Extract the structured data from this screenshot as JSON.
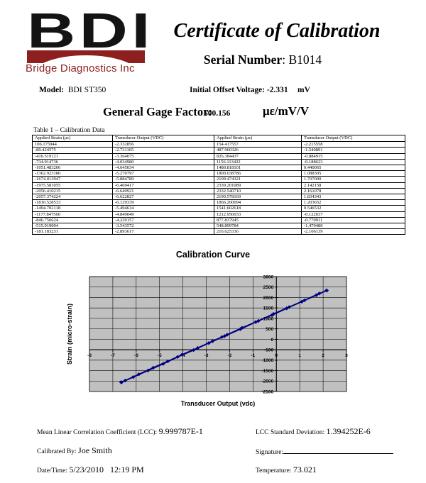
{
  "header": {
    "logo_text": "BDI",
    "logo_subtext": "Bridge Diagnostics Inc",
    "brand_color": "#8e1f1f",
    "title": "Certificate of Calibration",
    "serial_label": "Serial Number",
    "serial_value": ": B1014"
  },
  "info": {
    "model_label": "Model:",
    "model_value": "  BDI ST350",
    "offset_label": "Initial Offset Voltage: -2.331",
    "offset_unit": "mV",
    "gage_label": "General Gage Factor:",
    "gage_value": "500.156",
    "gage_unit": "με/mV/V"
  },
  "table": {
    "caption": "Table 1 – Calibration Data",
    "headers": [
      "Applied Strain (με)",
      "Transducer Output (VDC)",
      "Applied Strain (με)",
      "Transducer Output (VDC)"
    ],
    "rows": [
      [
        "106.175944",
        "-2.332856",
        "154.417557",
        "-2.215558"
      ],
      [
        "-89.424575",
        "-2.731165",
        "487.960326",
        "-1.540891"
      ],
      [
        "-416.519121",
        "-3.364075",
        "826.384437",
        "-0.884915"
      ],
      [
        "-734.914736",
        "-4.034980",
        "1156.113422",
        "-0.188623"
      ],
      [
        "-1051.483206",
        "-4.645034",
        "1480.818101",
        "0.440065"
      ],
      [
        "-1362.923180",
        "-5.270797",
        "1800.038786",
        "1.088305"
      ],
      [
        "-1674.013947",
        "-5.884789",
        "2109.474321",
        "1.707000"
      ],
      [
        "-1975.581055",
        "-6.469417",
        "2339.201089",
        "2.142158"
      ],
      [
        "-2056.410215",
        "-6.649921",
        "2332.540710",
        "2.161078"
      ],
      [
        "-2057.374224",
        "-6.622827",
        "2190.578169",
        "1.834343"
      ],
      [
        "-1810.528533",
        "-6.129339",
        "1866.200094",
        "1.203652"
      ],
      [
        "-1494.702118",
        "-5.494634",
        "1541.602618",
        "0.546532"
      ],
      [
        "-1177.847560",
        "-4.849049",
        "1212.950033",
        "-0.122637"
      ],
      [
        "-846.756624",
        "-4.229157",
        "877.837945",
        "-0.770911"
      ],
      [
        "-515.919004",
        "-3.543572",
        "548.899784",
        "-1.470480"
      ],
      [
        "-181.183231",
        "-2.893617",
        "216.625336",
        "-2.106139"
      ]
    ]
  },
  "chart_data": {
    "type": "scatter",
    "title": "Calibration Curve",
    "xlabel": "Transducer Output (vdc)",
    "ylabel": "Strain (micro-strain)",
    "xlim": [
      -8,
      3
    ],
    "ylim": [
      -2500,
      3000
    ],
    "x_ticks": [
      -8,
      -7,
      -6,
      -5,
      -4,
      -3,
      -2,
      -1,
      0,
      1,
      2,
      3
    ],
    "y_ticks": [
      -2500,
      -2000,
      -1500,
      -1000,
      -500,
      0,
      500,
      1000,
      1500,
      2000,
      2500,
      3000
    ],
    "x_axis_at_y": -500,
    "y_axis_at_x": 0,
    "grid": true,
    "legend": "none",
    "plot_bg": "#c0c0c0",
    "series_color": "#000080",
    "points": [
      [
        -2.332856,
        106.175944
      ],
      [
        -2.731165,
        -89.424575
      ],
      [
        -3.364075,
        -416.519121
      ],
      [
        -4.03498,
        -734.914736
      ],
      [
        -4.645034,
        -1051.483206
      ],
      [
        -5.270797,
        -1362.92318
      ],
      [
        -5.884789,
        -1674.013947
      ],
      [
        -6.469417,
        -1975.581055
      ],
      [
        -6.649921,
        -2056.410215
      ],
      [
        -6.622827,
        -2057.374224
      ],
      [
        -6.129339,
        -1810.528533
      ],
      [
        -5.494634,
        -1494.702118
      ],
      [
        -4.849049,
        -1177.84756
      ],
      [
        -4.229157,
        -846.756624
      ],
      [
        -3.543572,
        -515.919004
      ],
      [
        -2.893617,
        -181.183231
      ],
      [
        -2.215558,
        154.417557
      ],
      [
        -1.540891,
        487.960326
      ],
      [
        -0.884915,
        826.384437
      ],
      [
        -0.188623,
        1156.113422
      ],
      [
        0.440065,
        1480.818101
      ],
      [
        1.088305,
        1800.038786
      ],
      [
        1.707,
        2109.474321
      ],
      [
        2.142158,
        2339.201089
      ],
      [
        2.161078,
        2332.54071
      ],
      [
        1.834343,
        2190.578169
      ],
      [
        1.203652,
        1866.200094
      ],
      [
        0.546532,
        1541.602618
      ],
      [
        -0.122637,
        1212.950033
      ],
      [
        -0.770911,
        877.837945
      ],
      [
        -1.47048,
        548.899784
      ],
      [
        -2.106139,
        216.625336
      ]
    ]
  },
  "footer": {
    "lcc_label": "Mean Linear Correlation Coefficient (LCC): ",
    "lcc_value": "9.999787E-1",
    "lcc_sd_label": "LCC Standard Deviation: ",
    "lcc_sd_value": "1.394252E-6",
    "calibrated_by_label": "Calibrated By: ",
    "calibrated_by_value": "Joe Smith",
    "signature_label": "Signature:",
    "datetime_label": "Date/Time: ",
    "datetime_value": "5/23/2010   12:19 PM",
    "temperature_label": "Temperature: ",
    "temperature_value": "73.021"
  }
}
